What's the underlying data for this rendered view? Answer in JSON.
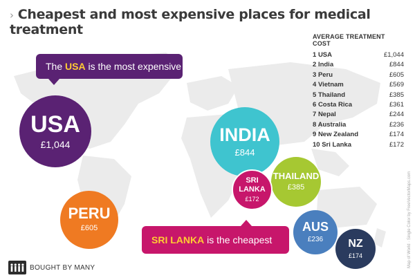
{
  "title": "Cheapest and most expensive places for medical treatment",
  "table": {
    "header": "AVERAGE TREATMENT COST",
    "rows": [
      {
        "rank": "1",
        "country": "USA",
        "cost": "£1,044"
      },
      {
        "rank": "2",
        "country": "India",
        "cost": "£844"
      },
      {
        "rank": "3",
        "country": "Peru",
        "cost": "£605"
      },
      {
        "rank": "4",
        "country": "Vietnam",
        "cost": "£569"
      },
      {
        "rank": "5",
        "country": "Thailand",
        "cost": "£385"
      },
      {
        "rank": "6",
        "country": "Costa Rica",
        "cost": "£361"
      },
      {
        "rank": "7",
        "country": "Nepal",
        "cost": "£244"
      },
      {
        "rank": "8",
        "country": "Australia",
        "cost": "£236"
      },
      {
        "rank": "9",
        "country": "New Zealand",
        "cost": "£174"
      },
      {
        "rank": "10",
        "country": "Sri Lanka",
        "cost": "£172"
      }
    ]
  },
  "callouts": {
    "most_expensive": {
      "pre": "The ",
      "highlight": "USA",
      "post": " is the most expensive"
    },
    "cheapest": {
      "highlight": "SRI LANKA",
      "post": " is the cheapest"
    }
  },
  "credit": "Map of World · Single Color by FreeVectorMaps.com",
  "logo_text": "BOUGHT BY MANY",
  "chart_data": {
    "type": "bubble-map",
    "title": "Cheapest and most expensive places for medical treatment",
    "unit": "£",
    "points": [
      {
        "label": "USA",
        "value_label": "£1,044",
        "value": 1044,
        "color": "#5a2273"
      },
      {
        "label": "PERU",
        "value_label": "£605",
        "value": 605,
        "color": "#ef7a22"
      },
      {
        "label": "INDIA",
        "value_label": "£844",
        "value": 844,
        "color": "#3fc4cf"
      },
      {
        "label": "SRI LANKA",
        "value_label": "£172",
        "value": 172,
        "color": "#c7166b"
      },
      {
        "label": "THAILAND",
        "value_label": "£385",
        "value": 385,
        "color": "#a6c832"
      },
      {
        "label": "AUS",
        "value_label": "£236",
        "value": 236,
        "color": "#4a7fbe"
      },
      {
        "label": "NZ",
        "value_label": "£174",
        "value": 174,
        "color": "#2a3b5e"
      }
    ]
  }
}
